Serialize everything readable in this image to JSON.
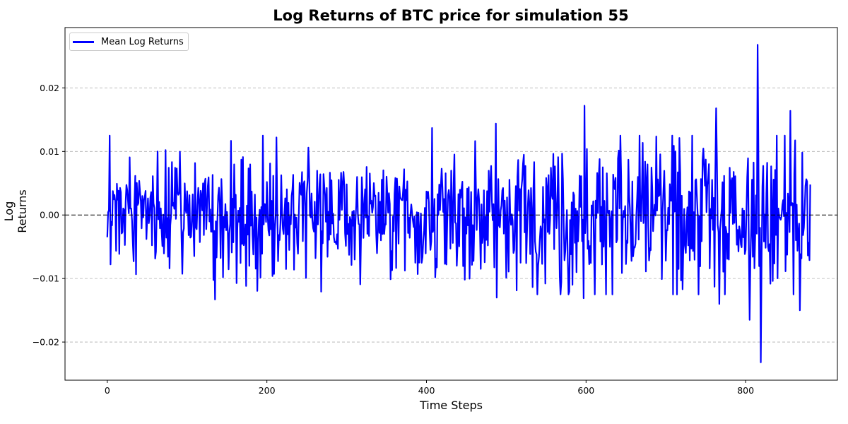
{
  "chart_data": {
    "type": "line",
    "title": "Log Returns of BTC price for simulation 55",
    "xlabel": "Time Steps",
    "ylabel": "Log Returns",
    "xlim": [
      -53,
      915
    ],
    "ylim": [
      -0.026,
      0.0295
    ],
    "xticks": [
      0,
      200,
      400,
      600,
      800
    ],
    "xtick_labels": [
      "0",
      "200",
      "400",
      "600",
      "800"
    ],
    "yticks": [
      -0.02,
      -0.01,
      0.0,
      0.01,
      0.02
    ],
    "ytick_labels": [
      "−0.02",
      "−0.01",
      "0.00",
      "0.01",
      "0.02"
    ],
    "grid": "y-dashed",
    "zero_line": true,
    "legend": {
      "position": "upper left",
      "entries": [
        "Mean Log Returns"
      ]
    },
    "series": [
      {
        "name": "Mean Log Returns",
        "color": "#0000ff",
        "n_points": 882,
        "x_range": [
          0,
          881
        ],
        "first_value": -0.0035,
        "last_value": 0.0048,
        "max": {
          "x": 815,
          "y": 0.0268
        },
        "min": {
          "x": 819,
          "y": -0.0232
        },
        "notable_points": [
          {
            "x": 0,
            "y": -0.0035
          },
          {
            "x": 135,
            "y": -0.0133
          },
          {
            "x": 212,
            "y": 0.0122
          },
          {
            "x": 407,
            "y": 0.0137
          },
          {
            "x": 487,
            "y": 0.0144
          },
          {
            "x": 488,
            "y": -0.013
          },
          {
            "x": 598,
            "y": 0.0172
          },
          {
            "x": 597,
            "y": -0.0131
          },
          {
            "x": 763,
            "y": 0.0168
          },
          {
            "x": 767,
            "y": -0.014
          },
          {
            "x": 805,
            "y": -0.0165
          },
          {
            "x": 815,
            "y": 0.0268
          },
          {
            "x": 819,
            "y": -0.0232
          },
          {
            "x": 856,
            "y": 0.0164
          },
          {
            "x": 868,
            "y": -0.015
          },
          {
            "x": 881,
            "y": 0.0048
          }
        ],
        "approx_std": 0.0058,
        "volatility_note": "noise amplitude grows after ~x=500"
      }
    ]
  }
}
